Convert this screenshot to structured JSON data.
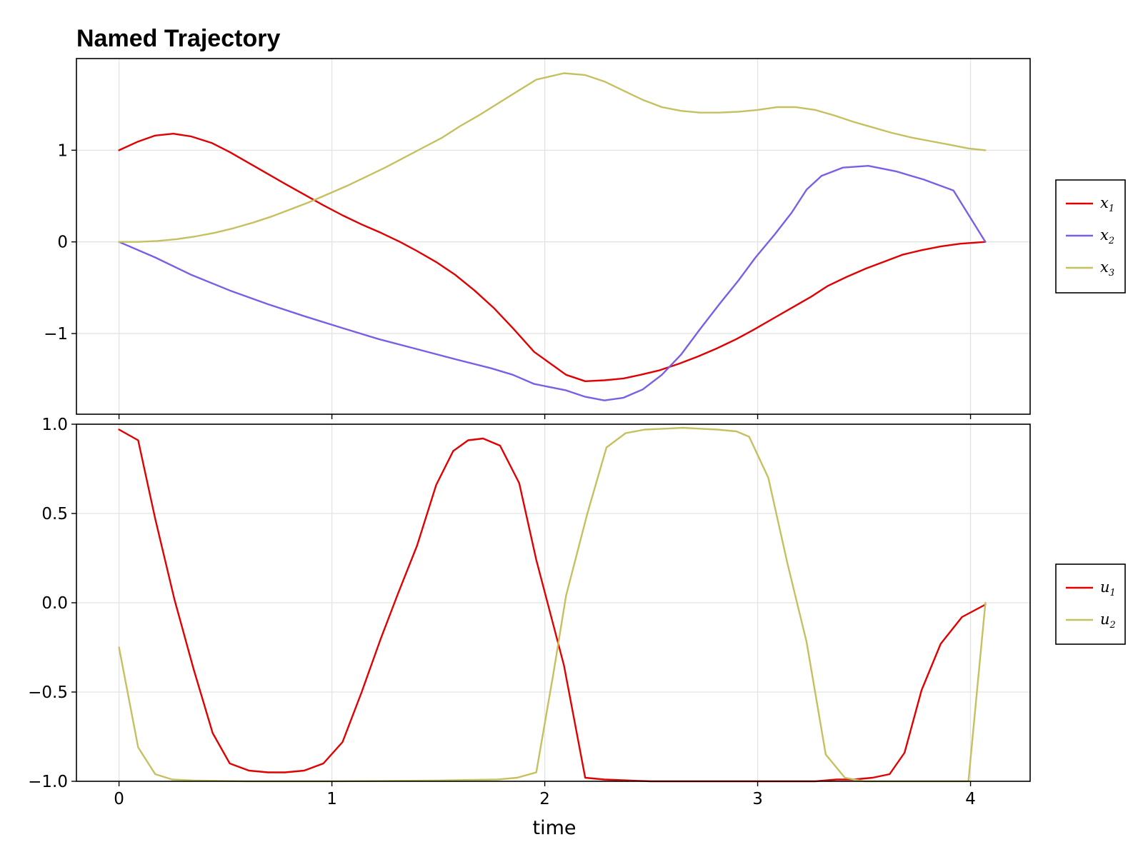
{
  "chart_data": [
    {
      "type": "line",
      "title": "Named Trajectory",
      "xlabel": "",
      "ylabel": "",
      "xlim": [
        -0.2,
        4.28
      ],
      "ylim": [
        -1.88,
        2.0
      ],
      "xticks": [
        0,
        1,
        2,
        3,
        4
      ],
      "yticks": [
        -1,
        0,
        1
      ],
      "ytick_labels": [
        "−1",
        "0",
        "1"
      ],
      "grid": true,
      "legend_position": "right",
      "series": [
        {
          "name": "x",
          "subscript": "1",
          "color": "#e00000",
          "x": [
            0,
            0.085,
            0.17,
            0.255,
            0.34,
            0.435,
            0.52,
            0.61,
            0.7,
            0.79,
            0.875,
            0.96,
            1.05,
            1.14,
            1.23,
            1.32,
            1.4,
            1.49,
            1.58,
            1.67,
            1.76,
            1.85,
            1.95,
            2.1,
            2.19,
            2.28,
            2.37,
            2.45,
            2.54,
            2.63,
            2.72,
            2.81,
            2.9,
            2.98,
            3.07,
            3.16,
            3.25,
            3.33,
            3.42,
            3.51,
            3.6,
            3.68,
            3.77,
            3.86,
            3.95,
            4.07
          ],
          "values": [
            1.0,
            1.09,
            1.16,
            1.18,
            1.15,
            1.08,
            0.98,
            0.86,
            0.74,
            0.62,
            0.51,
            0.4,
            0.29,
            0.19,
            0.1,
            0.0,
            -0.1,
            -0.22,
            -0.36,
            -0.53,
            -0.72,
            -0.94,
            -1.2,
            -1.45,
            -1.52,
            -1.51,
            -1.49,
            -1.45,
            -1.4,
            -1.33,
            -1.25,
            -1.16,
            -1.06,
            -0.96,
            -0.84,
            -0.72,
            -0.6,
            -0.48,
            -0.38,
            -0.29,
            -0.21,
            -0.14,
            -0.09,
            -0.05,
            -0.02,
            0.0
          ]
        },
        {
          "name": "x",
          "subscript": "2",
          "color": "#7b5ee6",
          "x": [
            0,
            0.17,
            0.34,
            0.52,
            0.7,
            0.87,
            1.05,
            1.22,
            1.4,
            1.58,
            1.75,
            1.85,
            1.95,
            2.1,
            2.19,
            2.28,
            2.37,
            2.46,
            2.55,
            2.64,
            2.73,
            2.82,
            2.91,
            2.99,
            3.08,
            3.16,
            3.23,
            3.3,
            3.4,
            3.52,
            3.65,
            3.78,
            3.92,
            4.07
          ],
          "values": [
            0.0,
            -0.17,
            -0.36,
            -0.53,
            -0.68,
            -0.81,
            -0.94,
            -1.06,
            -1.17,
            -1.28,
            -1.38,
            -1.45,
            -1.55,
            -1.62,
            -1.69,
            -1.73,
            -1.7,
            -1.61,
            -1.45,
            -1.23,
            -0.95,
            -0.68,
            -0.42,
            -0.17,
            0.08,
            0.32,
            0.57,
            0.72,
            0.81,
            0.83,
            0.77,
            0.68,
            0.56,
            0.0
          ]
        },
        {
          "name": "x",
          "subscript": "3",
          "color": "#c5c060",
          "x": [
            0,
            0.09,
            0.18,
            0.27,
            0.36,
            0.45,
            0.54,
            0.63,
            0.72,
            0.8,
            0.89,
            0.98,
            1.07,
            1.16,
            1.25,
            1.34,
            1.43,
            1.52,
            1.6,
            1.69,
            1.78,
            1.87,
            1.96,
            2.09,
            2.19,
            2.28,
            2.37,
            2.46,
            2.55,
            2.64,
            2.73,
            2.82,
            2.91,
            3.0,
            3.09,
            3.18,
            3.27,
            3.36,
            3.45,
            3.54,
            3.63,
            3.72,
            3.81,
            3.9,
            3.99,
            4.07
          ],
          "values": [
            0.0,
            0.0,
            0.01,
            0.03,
            0.06,
            0.1,
            0.15,
            0.21,
            0.28,
            0.35,
            0.43,
            0.52,
            0.61,
            0.71,
            0.81,
            0.92,
            1.03,
            1.14,
            1.26,
            1.38,
            1.51,
            1.64,
            1.77,
            1.84,
            1.82,
            1.75,
            1.65,
            1.55,
            1.47,
            1.43,
            1.41,
            1.41,
            1.42,
            1.44,
            1.47,
            1.47,
            1.44,
            1.38,
            1.31,
            1.25,
            1.19,
            1.14,
            1.1,
            1.06,
            1.02,
            1.0
          ]
        }
      ]
    },
    {
      "type": "line",
      "title": "",
      "xlabel": "time",
      "ylabel": "",
      "xlim": [
        -0.2,
        4.28
      ],
      "ylim": [
        -1.0,
        1.0
      ],
      "xticks": [
        0,
        1,
        2,
        3,
        4
      ],
      "xtick_labels": [
        "0",
        "1",
        "2",
        "3",
        "4"
      ],
      "yticks": [
        -1.0,
        -0.5,
        0.0,
        0.5,
        1.0
      ],
      "ytick_labels": [
        "−1.0",
        "−0.5",
        "0.0",
        "0.5",
        "1.0"
      ],
      "grid": true,
      "legend_position": "right",
      "series": [
        {
          "name": "u",
          "subscript": "1",
          "color": "#e00000",
          "x": [
            0,
            0.09,
            0.17,
            0.26,
            0.35,
            0.44,
            0.52,
            0.61,
            0.7,
            0.78,
            0.87,
            0.96,
            1.05,
            1.14,
            1.23,
            1.31,
            1.4,
            1.49,
            1.57,
            1.64,
            1.71,
            1.79,
            1.88,
            1.96,
            2.09,
            2.19,
            2.28,
            2.5,
            3.0,
            3.27,
            3.37,
            3.45,
            3.54,
            3.62,
            3.69,
            3.77,
            3.86,
            3.96,
            4.07
          ],
          "values": [
            0.97,
            0.91,
            0.47,
            0.02,
            -0.37,
            -0.73,
            -0.9,
            -0.94,
            -0.95,
            -0.95,
            -0.94,
            -0.9,
            -0.78,
            -0.5,
            -0.2,
            0.05,
            0.32,
            0.66,
            0.85,
            0.91,
            0.92,
            0.88,
            0.67,
            0.24,
            -0.35,
            -0.98,
            -0.99,
            -1.0,
            -1.0,
            -1.0,
            -0.99,
            -0.99,
            -0.98,
            -0.96,
            -0.84,
            -0.49,
            -0.23,
            -0.08,
            -0.01
          ]
        },
        {
          "name": "u",
          "subscript": "2",
          "color": "#c5c060",
          "x": [
            0,
            0.09,
            0.17,
            0.25,
            0.35,
            0.6,
            1.0,
            1.5,
            1.78,
            1.87,
            1.96,
            2.04,
            2.1,
            2.2,
            2.29,
            2.38,
            2.47,
            2.56,
            2.65,
            2.73,
            2.81,
            2.9,
            2.96,
            3.05,
            3.14,
            3.23,
            3.32,
            3.41,
            3.5,
            3.9,
            3.99,
            4.07
          ],
          "values": [
            -0.25,
            -0.81,
            -0.96,
            -0.99,
            -0.995,
            -1.0,
            -1.0,
            -0.995,
            -0.99,
            -0.98,
            -0.95,
            -0.4,
            0.04,
            0.5,
            0.87,
            0.95,
            0.97,
            0.975,
            0.98,
            0.975,
            0.97,
            0.96,
            0.93,
            0.7,
            0.22,
            -0.22,
            -0.85,
            -0.98,
            -1.0,
            -1.0,
            -1.0,
            0.0
          ]
        }
      ]
    }
  ]
}
